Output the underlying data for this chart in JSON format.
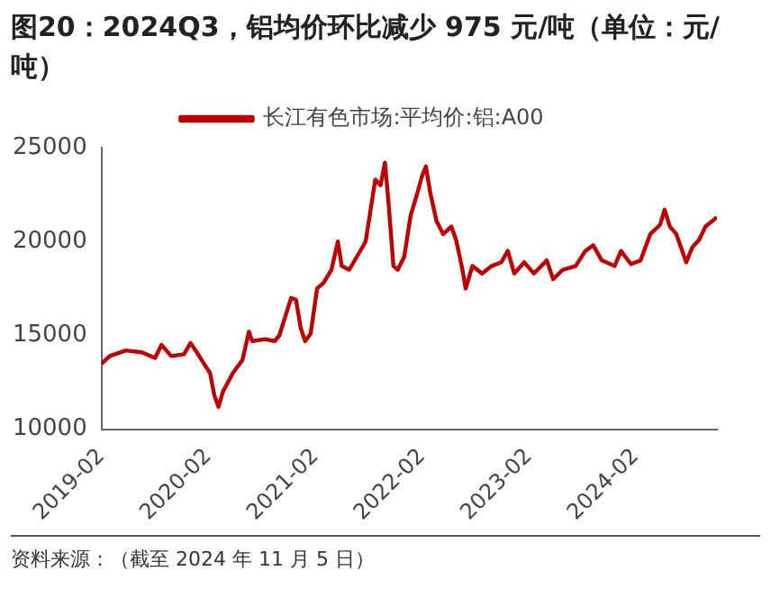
{
  "chart_data": {
    "type": "line",
    "title": "图20：2024Q3，铝均价环比减少 975 元/吨（单位：元/吨）",
    "x": [
      "2019-02-01",
      "2019-03-01",
      "2019-04-25",
      "2019-06-19",
      "2019-08-03",
      "2019-08-25",
      "2019-09-27",
      "2019-11-10",
      "2019-12-02",
      "2019-12-24",
      "2020-01-09",
      "2020-02-07",
      "2020-02-22",
      "2020-03-07",
      "2020-03-22",
      "2020-04-25",
      "2020-05-28",
      "2020-06-19",
      "2020-06-30",
      "2020-08-13",
      "2020-09-15",
      "2020-10-01",
      "2020-11-10",
      "2020-11-27",
      "2020-12-13",
      "2020-12-28",
      "2021-01-16",
      "2021-02-07",
      "2021-03-01",
      "2021-03-28",
      "2021-04-19",
      "2021-05-02",
      "2021-05-28",
      "2021-07-23",
      "2021-08-25",
      "2021-09-12",
      "2021-09-27",
      "2021-10-08",
      "2021-10-26",
      "2021-11-10",
      "2021-12-02",
      "2021-12-24",
      "2022-01-16",
      "2022-02-01",
      "2022-02-14",
      "2022-03-01",
      "2022-03-22",
      "2022-04-14",
      "2022-05-12",
      "2022-05-28",
      "2022-06-19",
      "2022-06-30",
      "2022-07-23",
      "2022-08-25",
      "2022-09-27",
      "2022-10-30",
      "2022-11-21",
      "2022-12-13",
      "2023-01-16",
      "2023-02-18",
      "2023-04-03",
      "2023-04-25",
      "2023-05-28",
      "2023-07-11",
      "2023-08-13",
      "2023-09-09",
      "2023-10-08",
      "2023-11-21",
      "2023-12-13",
      "2024-01-16",
      "2024-02-18",
      "2024-03-22",
      "2024-04-25",
      "2024-05-10",
      "2024-05-28",
      "2024-06-19",
      "2024-07-23",
      "2024-08-13",
      "2024-09-05",
      "2024-09-27",
      "2024-11-05"
    ],
    "series": [
      {
        "name": "长江有色市场:平均价:铝:A00",
        "color": "#c00000",
        "values": [
          13500,
          13900,
          14200,
          14100,
          13800,
          14500,
          13900,
          14000,
          14600,
          14100,
          13700,
          13000,
          11800,
          11200,
          12000,
          13000,
          13700,
          15200,
          14700,
          14800,
          14700,
          15000,
          17000,
          16900,
          15400,
          14700,
          15100,
          17500,
          17800,
          18500,
          20000,
          18700,
          18500,
          20000,
          23300,
          23000,
          24200,
          22300,
          18700,
          18500,
          19200,
          21400,
          22600,
          23500,
          24000,
          22600,
          21100,
          20400,
          20800,
          20100,
          18500,
          17500,
          18700,
          18300,
          18700,
          18900,
          19500,
          18300,
          18900,
          18300,
          19000,
          18000,
          18500,
          18700,
          19500,
          19800,
          19000,
          18700,
          19500,
          18800,
          19000,
          20400,
          20900,
          21700,
          20800,
          20400,
          18900,
          19700,
          20100,
          20800,
          21300
        ]
      }
    ],
    "xlim": [
      "2019-02-01",
      "2024-11-05"
    ],
    "xticks": [
      "2019-02",
      "2020-02",
      "2021-02",
      "2022-02",
      "2023-02",
      "2024-02"
    ],
    "ylim": [
      10000,
      25000
    ],
    "yticks": [
      10000,
      15000,
      20000,
      25000
    ],
    "grid": false,
    "legend": "top",
    "marker": "none",
    "line_style": "solid",
    "annotations": [
      "资料来源：（截至 2024 年 11 月 5 日）"
    ]
  }
}
